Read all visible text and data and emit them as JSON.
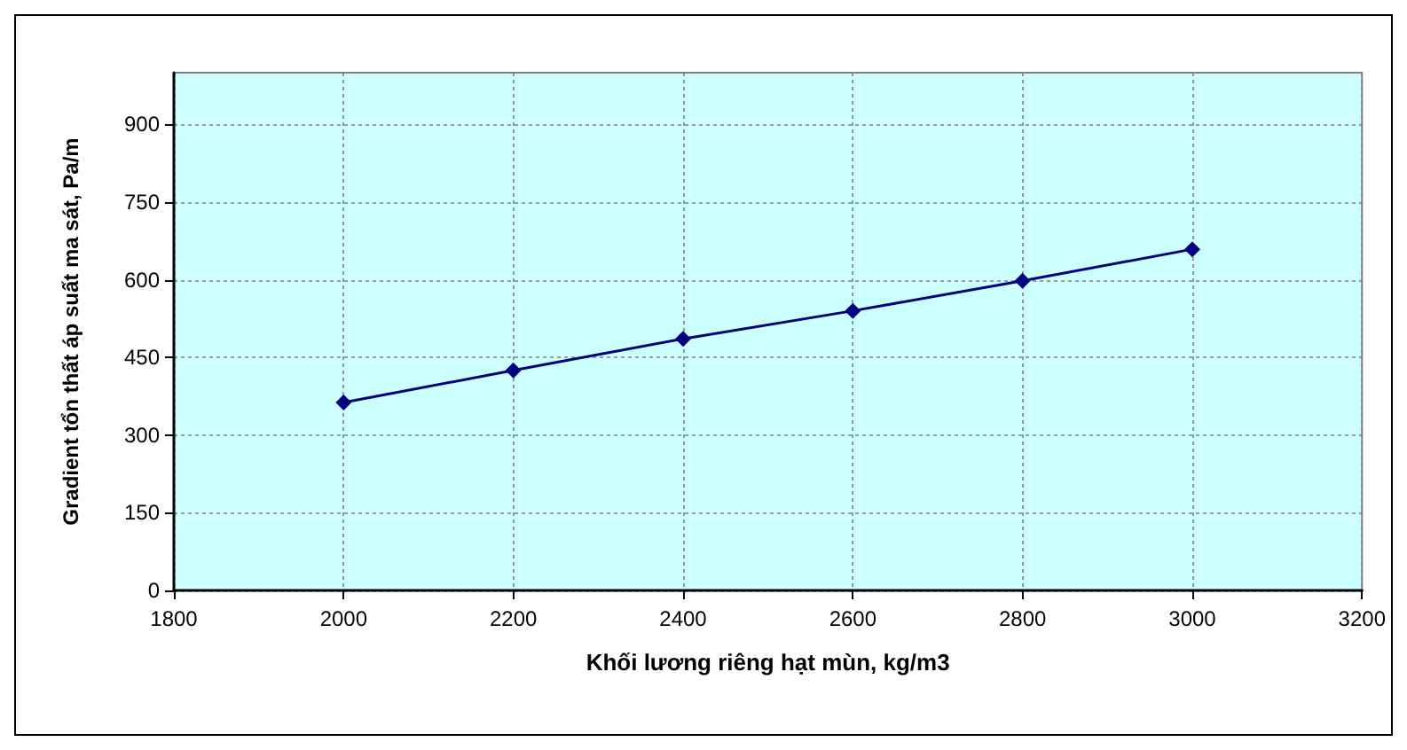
{
  "chart_data": {
    "type": "line",
    "xlabel": "Khối lương riêng hạt mùn, kg/m3",
    "ylabel": "Gradient tổn thất áp suất ma sát, Pa/m",
    "x": [
      2000,
      2200,
      2400,
      2600,
      2800,
      3000
    ],
    "series": [
      {
        "color": "#000080",
        "values": [
          363,
          425,
          486,
          540,
          598,
          659
        ]
      }
    ],
    "xlim": [
      1800,
      3200
    ],
    "xticks": [
      1800,
      2000,
      2200,
      2400,
      2600,
      2800,
      3000,
      3200
    ],
    "ylim": [
      0,
      1000
    ],
    "yticks": [
      0,
      150,
      300,
      450,
      600,
      750,
      900
    ],
    "grid": true,
    "marker": "diamond",
    "line_style": "solid"
  }
}
